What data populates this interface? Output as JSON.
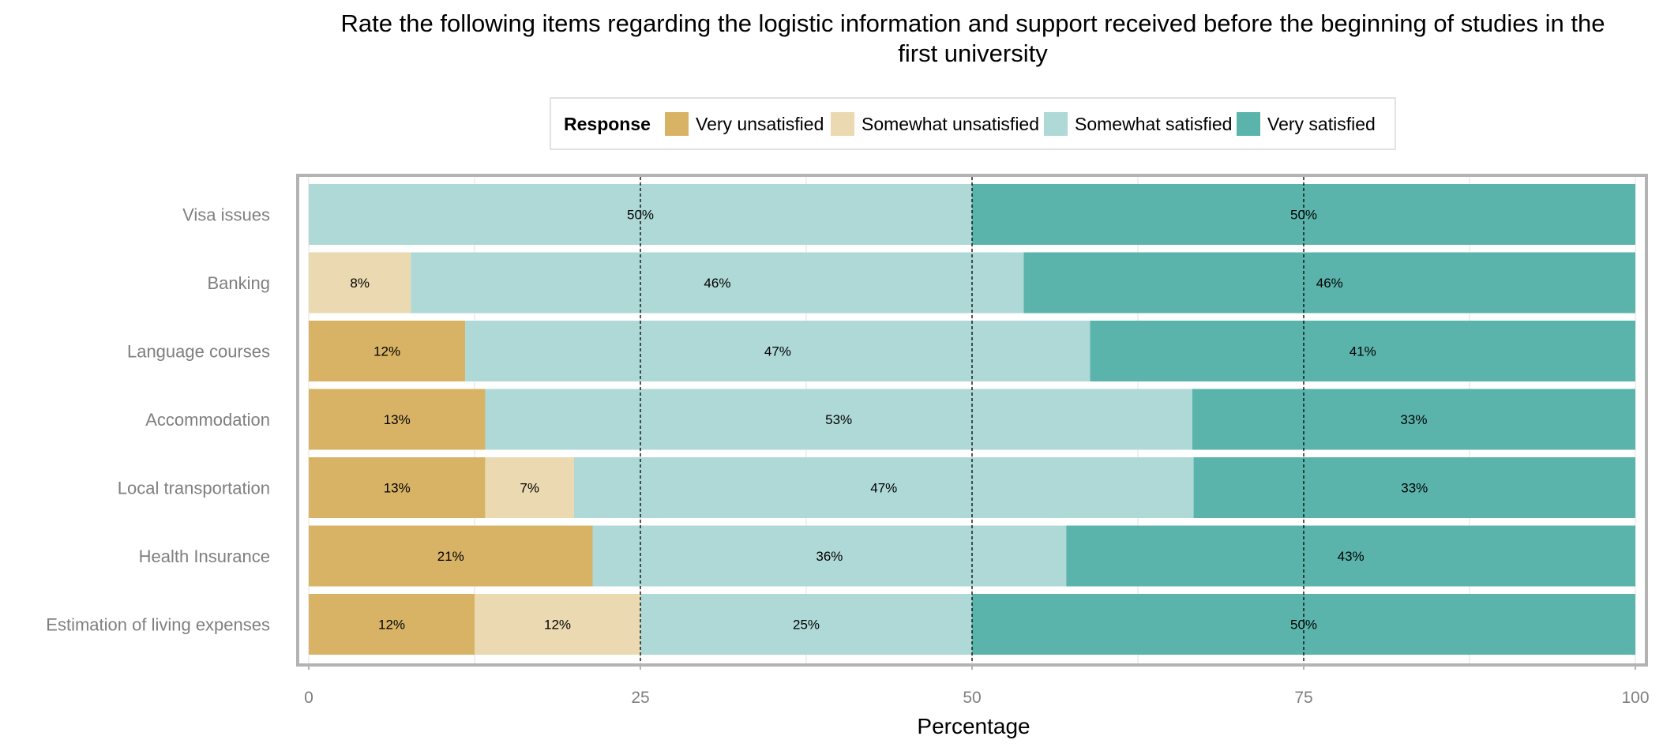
{
  "chart_data": {
    "type": "bar",
    "orientation": "horizontal",
    "stacked": true,
    "title": "Rate the following items regarding the logistic information and support received before the beginning of studies in the first university",
    "title_lines": [
      "Rate the following items regarding the logistic information and support received before the beginning of studies in the",
      "first university"
    ],
    "xlabel": "Percentage",
    "ylabel": "",
    "xlim": [
      0,
      100
    ],
    "x_ticks": [
      0,
      25,
      50,
      75,
      100
    ],
    "reference_lines": [
      25,
      50,
      75
    ],
    "grid": true,
    "legend_position": "top",
    "legend_title": "Response",
    "categories": [
      "Visa issues",
      "Banking",
      "Language courses",
      "Accommodation",
      "Local transportation",
      "Health Insurance",
      "Estimation of living expenses"
    ],
    "series": [
      {
        "name": "Very unsatisfied",
        "color": "#d8b365",
        "values": [
          0,
          0,
          11.8,
          13.3,
          13.3,
          21.4,
          12.5
        ],
        "labels": [
          "",
          "",
          "12%",
          "13%",
          "13%",
          "21%",
          "12%"
        ]
      },
      {
        "name": "Somewhat unsatisfied",
        "color": "#ebdab1",
        "values": [
          0,
          7.7,
          0,
          0,
          6.7,
          0,
          12.5
        ],
        "labels": [
          "",
          "8%",
          "",
          "",
          "7%",
          "",
          "12%"
        ]
      },
      {
        "name": "Somewhat satisfied",
        "color": "#aed9d6",
        "values": [
          50,
          46.2,
          47.1,
          53.3,
          46.7,
          35.7,
          25
        ],
        "labels": [
          "50%",
          "46%",
          "47%",
          "53%",
          "47%",
          "36%",
          "25%"
        ]
      },
      {
        "name": "Very satisfied",
        "color": "#5ab4ac",
        "values": [
          50,
          46.1,
          41.1,
          33.4,
          33.3,
          42.9,
          50
        ],
        "labels": [
          "50%",
          "46%",
          "41%",
          "33%",
          "33%",
          "43%",
          "50%"
        ]
      }
    ]
  }
}
